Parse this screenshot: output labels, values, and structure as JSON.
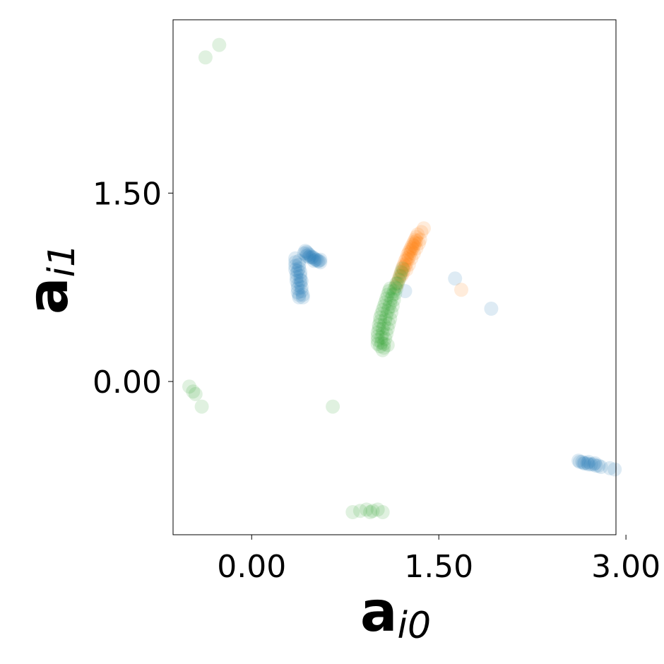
{
  "chart_data": {
    "type": "scatter",
    "xlim": [
      -0.63,
      2.92
    ],
    "ylim": [
      -1.22,
      2.88
    ],
    "x_ticks": [
      {
        "value": 0.0,
        "label": "0.00"
      },
      {
        "value": 1.5,
        "label": "1.50"
      },
      {
        "value": 3.0,
        "label": "3.00"
      }
    ],
    "y_ticks": [
      {
        "value": 0.0,
        "label": "0.00"
      },
      {
        "value": 1.5,
        "label": "1.50"
      }
    ],
    "xlabel": {
      "main": "a",
      "sub": "i0"
    },
    "ylabel": {
      "main": "a",
      "sub": "i1"
    },
    "grid": false,
    "legend": "none",
    "marker_opacity": 0.15,
    "series": [
      {
        "color": "#1f77b4",
        "points": [
          [
            0.35,
            0.98
          ],
          [
            0.35,
            0.95
          ],
          [
            0.35,
            0.92
          ],
          [
            0.35,
            0.89
          ],
          [
            0.36,
            0.86
          ],
          [
            0.36,
            0.83
          ],
          [
            0.36,
            0.8
          ],
          [
            0.37,
            0.77
          ],
          [
            0.37,
            0.74
          ],
          [
            0.37,
            0.71
          ],
          [
            0.38,
            0.69
          ],
          [
            0.38,
            0.67
          ],
          [
            0.38,
            0.96
          ],
          [
            0.38,
            0.93
          ],
          [
            0.38,
            0.9
          ],
          [
            0.39,
            0.87
          ],
          [
            0.39,
            0.84
          ],
          [
            0.39,
            0.81
          ],
          [
            0.39,
            0.78
          ],
          [
            0.4,
            0.75
          ],
          [
            0.4,
            0.72
          ],
          [
            0.41,
            0.69
          ],
          [
            0.41,
            0.67
          ],
          [
            0.37,
            0.88
          ],
          [
            0.4,
            0.8
          ],
          [
            0.42,
            1.02
          ],
          [
            0.43,
            1.04
          ],
          [
            0.44,
            1.03
          ],
          [
            0.45,
            1.02
          ],
          [
            0.46,
            1.01
          ],
          [
            0.47,
            1.0
          ],
          [
            0.48,
            0.99
          ],
          [
            0.49,
            0.99
          ],
          [
            0.5,
            0.98
          ],
          [
            0.51,
            0.97
          ],
          [
            0.52,
            0.97
          ],
          [
            0.53,
            0.96
          ],
          [
            0.54,
            0.96
          ],
          [
            0.55,
            0.95
          ],
          [
            0.44,
            1.0
          ],
          [
            0.46,
            0.99
          ],
          [
            0.5,
            0.96
          ],
          [
            0.55,
            0.97
          ],
          [
            1.23,
            0.72
          ],
          [
            1.63,
            0.82
          ],
          [
            1.92,
            0.58
          ],
          [
            2.62,
            -0.63
          ],
          [
            2.63,
            -0.64
          ],
          [
            2.65,
            -0.64
          ],
          [
            2.66,
            -0.65
          ],
          [
            2.67,
            -0.65
          ],
          [
            2.69,
            -0.65
          ],
          [
            2.7,
            -0.66
          ],
          [
            2.72,
            -0.66
          ],
          [
            2.74,
            -0.66
          ],
          [
            2.76,
            -0.67
          ],
          [
            2.78,
            -0.67
          ],
          [
            2.8,
            -0.68
          ],
          [
            2.7,
            -0.64
          ],
          [
            2.75,
            -0.65
          ],
          [
            2.87,
            -0.69
          ],
          [
            2.91,
            -0.7
          ]
        ]
      },
      {
        "color": "#ff7f0e",
        "points": [
          [
            1.16,
            0.76
          ],
          [
            1.17,
            0.79
          ],
          [
            1.18,
            0.82
          ],
          [
            1.19,
            0.85
          ],
          [
            1.2,
            0.88
          ],
          [
            1.21,
            0.91
          ],
          [
            1.22,
            0.93
          ],
          [
            1.23,
            0.96
          ],
          [
            1.24,
            0.98
          ],
          [
            1.25,
            1.01
          ],
          [
            1.26,
            1.03
          ],
          [
            1.27,
            1.05
          ],
          [
            1.28,
            1.07
          ],
          [
            1.29,
            1.09
          ],
          [
            1.3,
            1.11
          ],
          [
            1.31,
            1.13
          ],
          [
            1.32,
            1.15
          ],
          [
            1.33,
            1.17
          ],
          [
            1.2,
            0.84
          ],
          [
            1.21,
            0.86
          ],
          [
            1.22,
            0.89
          ],
          [
            1.23,
            0.92
          ],
          [
            1.24,
            0.94
          ],
          [
            1.25,
            0.97
          ],
          [
            1.26,
            0.99
          ],
          [
            1.27,
            1.02
          ],
          [
            1.28,
            1.04
          ],
          [
            1.29,
            1.06
          ],
          [
            1.3,
            1.08
          ],
          [
            1.31,
            1.1
          ],
          [
            1.32,
            1.12
          ],
          [
            1.24,
            0.89
          ],
          [
            1.26,
            0.93
          ],
          [
            1.28,
            0.98
          ],
          [
            1.3,
            1.02
          ],
          [
            1.32,
            1.06
          ],
          [
            1.34,
            1.1
          ],
          [
            1.35,
            1.13
          ],
          [
            1.36,
            1.19
          ],
          [
            1.38,
            1.22
          ],
          [
            1.68,
            0.73
          ]
        ]
      },
      {
        "color": "#2ca02c",
        "points": [
          [
            1.01,
            0.3
          ],
          [
            1.01,
            0.33
          ],
          [
            1.01,
            0.36
          ],
          [
            1.01,
            0.39
          ],
          [
            1.02,
            0.42
          ],
          [
            1.02,
            0.45
          ],
          [
            1.03,
            0.48
          ],
          [
            1.03,
            0.51
          ],
          [
            1.04,
            0.54
          ],
          [
            1.05,
            0.57
          ],
          [
            1.06,
            0.6
          ],
          [
            1.07,
            0.63
          ],
          [
            1.08,
            0.66
          ],
          [
            1.09,
            0.69
          ],
          [
            1.1,
            0.72
          ],
          [
            1.11,
            0.74
          ],
          [
            1.03,
            0.28
          ],
          [
            1.04,
            0.31
          ],
          [
            1.04,
            0.35
          ],
          [
            1.05,
            0.38
          ],
          [
            1.05,
            0.42
          ],
          [
            1.06,
            0.45
          ],
          [
            1.07,
            0.49
          ],
          [
            1.08,
            0.52
          ],
          [
            1.09,
            0.56
          ],
          [
            1.1,
            0.59
          ],
          [
            1.11,
            0.62
          ],
          [
            1.12,
            0.66
          ],
          [
            1.13,
            0.69
          ],
          [
            1.14,
            0.72
          ],
          [
            1.15,
            0.75
          ],
          [
            1.16,
            0.78
          ],
          [
            1.06,
            0.3
          ],
          [
            1.07,
            0.34
          ],
          [
            1.08,
            0.38
          ],
          [
            1.09,
            0.42
          ],
          [
            1.1,
            0.46
          ],
          [
            1.11,
            0.5
          ],
          [
            1.12,
            0.55
          ],
          [
            1.13,
            0.6
          ],
          [
            1.14,
            0.65
          ],
          [
            1.15,
            0.7
          ],
          [
            1.16,
            0.74
          ],
          [
            1.17,
            0.78
          ],
          [
            1.18,
            0.81
          ],
          [
            1.19,
            0.84
          ],
          [
            1.2,
            0.87
          ],
          [
            1.21,
            0.9
          ],
          [
            1.05,
            0.25
          ],
          [
            1.09,
            0.29
          ],
          [
            1.06,
            0.27
          ],
          [
            -0.5,
            -0.04
          ],
          [
            -0.47,
            -0.08
          ],
          [
            -0.45,
            -0.1
          ],
          [
            -0.4,
            -0.2
          ],
          [
            -0.37,
            2.58
          ],
          [
            -0.26,
            2.68
          ],
          [
            0.65,
            -0.2
          ],
          [
            0.81,
            -1.04
          ],
          [
            0.87,
            -1.03
          ],
          [
            0.92,
            -1.02
          ],
          [
            0.97,
            -1.03
          ],
          [
            1.01,
            -1.02
          ],
          [
            1.05,
            -1.04
          ],
          [
            0.95,
            -1.04
          ]
        ]
      }
    ]
  }
}
